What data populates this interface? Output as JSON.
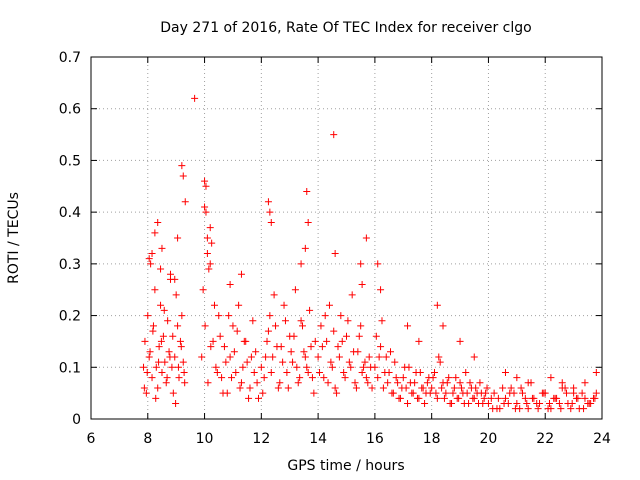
{
  "chart_data": {
    "type": "scatter",
    "title": "Day 271 of 2016, Rate Of TEC Index for receiver clgo",
    "xlabel": "GPS time / hours",
    "ylabel": "ROTI / TECUs",
    "xlim": [
      6,
      24
    ],
    "ylim": [
      0,
      0.7
    ],
    "x_ticks": [
      "6",
      "8",
      "10",
      "12",
      "14",
      "16",
      "18",
      "20",
      "22",
      "24"
    ],
    "y_ticks": [
      "0",
      "0.1",
      "0.2",
      "0.3",
      "0.4",
      "0.5",
      "0.6",
      "0.7"
    ],
    "grid": true,
    "marker": "+",
    "color": "#ff0000",
    "series": [
      {
        "x": [
          7.85,
          7.9,
          7.95,
          8.0,
          8.05,
          8.1,
          8.15,
          8.2,
          8.25,
          8.3,
          8.35,
          8.4,
          8.45,
          8.5,
          8.55,
          8.6,
          8.65,
          8.7,
          8.75,
          8.8,
          8.85,
          8.9,
          8.95,
          9.0,
          9.05,
          9.1,
          9.15,
          9.2,
          9.25,
          9.3,
          7.88,
          7.98,
          8.08,
          8.18,
          8.28,
          8.38,
          8.48,
          8.58,
          8.68,
          8.78,
          8.88,
          8.98,
          9.08,
          9.18,
          9.28,
          8.05,
          8.15,
          8.35,
          8.5,
          8.8,
          9.05,
          9.2,
          9.25,
          9.32,
          8.25,
          8.45,
          8.95,
          9.65,
          9.95,
          10.0,
          10.05,
          10.1,
          10.15,
          10.2,
          10.3,
          10.4,
          10.5,
          10.6,
          10.7,
          10.8,
          10.9,
          11.0,
          11.1,
          11.2,
          11.3,
          11.4,
          11.5,
          11.6,
          11.7,
          11.8,
          11.9,
          9.9,
          10.02,
          10.12,
          10.22,
          10.35,
          10.45,
          10.55,
          10.65,
          10.75,
          10.85,
          10.95,
          11.05,
          11.15,
          11.25,
          11.35,
          11.45,
          11.55,
          11.65,
          11.75,
          11.85,
          10.0,
          10.05,
          10.1,
          10.2,
          10.25,
          10.9,
          11.3,
          12.0,
          12.1,
          12.2,
          12.3,
          12.4,
          12.5,
          12.6,
          12.7,
          12.8,
          12.9,
          13.0,
          13.1,
          13.2,
          13.3,
          13.4,
          13.5,
          13.6,
          13.7,
          13.8,
          13.9,
          12.05,
          12.15,
          12.25,
          12.35,
          12.45,
          12.55,
          12.65,
          12.75,
          12.85,
          12.95,
          13.05,
          13.15,
          13.25,
          13.35,
          13.45,
          13.55,
          13.65,
          13.75,
          13.85,
          12.25,
          12.3,
          12.35,
          13.4,
          13.55,
          13.6,
          13.65,
          14.0,
          14.1,
          14.2,
          14.3,
          14.4,
          14.5,
          14.6,
          14.7,
          14.8,
          14.9,
          15.0,
          15.1,
          15.2,
          15.3,
          15.4,
          15.5,
          15.6,
          15.7,
          15.8,
          15.9,
          14.05,
          14.15,
          14.25,
          14.35,
          14.45,
          14.55,
          14.65,
          14.75,
          14.85,
          14.95,
          15.05,
          15.15,
          15.25,
          15.35,
          15.45,
          15.55,
          15.65,
          15.75,
          15.85,
          14.55,
          14.6,
          15.5,
          15.55,
          15.7,
          16.0,
          16.1,
          16.2,
          16.3,
          16.4,
          16.5,
          16.6,
          16.7,
          16.8,
          16.9,
          17.0,
          17.1,
          17.2,
          17.3,
          17.4,
          17.5,
          17.6,
          17.7,
          17.8,
          17.9,
          16.05,
          16.15,
          16.25,
          16.35,
          16.45,
          16.55,
          16.65,
          16.75,
          16.85,
          16.95,
          17.05,
          17.15,
          17.25,
          17.35,
          17.45,
          17.55,
          17.65,
          17.75,
          17.85,
          17.95,
          16.1,
          16.2,
          17.15,
          17.55,
          18.0,
          18.1,
          18.2,
          18.3,
          18.4,
          18.5,
          18.6,
          18.7,
          18.8,
          18.9,
          19.0,
          19.1,
          19.2,
          19.3,
          19.4,
          19.5,
          19.6,
          19.7,
          19.8,
          19.9,
          18.05,
          18.15,
          18.25,
          18.35,
          18.45,
          18.55,
          18.65,
          18.75,
          18.85,
          18.95,
          19.05,
          19.15,
          19.25,
          19.35,
          19.45,
          19.55,
          19.65,
          19.75,
          19.85,
          19.95,
          18.2,
          18.4,
          19.0,
          19.5,
          20.0,
          20.2,
          20.4,
          20.6,
          20.8,
          21.0,
          21.2,
          21.4,
          21.6,
          21.8,
          22.0,
          22.2,
          22.4,
          22.6,
          22.8,
          23.0,
          23.2,
          23.4,
          23.6,
          23.8,
          20.1,
          20.3,
          20.5,
          20.7,
          20.9,
          21.1,
          21.3,
          21.5,
          21.7,
          21.9,
          22.1,
          22.3,
          22.5,
          22.7,
          22.9,
          23.1,
          23.3,
          23.5,
          23.7,
          20.15,
          20.35,
          20.55,
          20.75,
          20.95,
          21.15,
          21.35,
          21.55,
          21.75,
          21.95,
          22.15,
          22.35,
          22.55,
          22.75,
          22.95,
          23.15,
          23.35,
          23.55,
          23.75,
          20.6,
          21.0,
          21.4,
          22.2,
          22.6,
          23.0,
          23.4,
          23.8
        ],
        "y": [
          0.1,
          0.15,
          0.05,
          0.2,
          0.12,
          0.3,
          0.08,
          0.18,
          0.25,
          0.1,
          0.06,
          0.14,
          0.22,
          0.09,
          0.16,
          0.11,
          0.07,
          0.19,
          0.13,
          0.27,
          0.1,
          0.05,
          0.12,
          0.24,
          0.18,
          0.08,
          0.15,
          0.2,
          0.11,
          0.07,
          0.06,
          0.09,
          0.13,
          0.17,
          0.04,
          0.11,
          0.15,
          0.21,
          0.08,
          0.12,
          0.16,
          0.03,
          0.1,
          0.14,
          0.09,
          0.31,
          0.32,
          0.38,
          0.33,
          0.28,
          0.35,
          0.49,
          0.47,
          0.42,
          0.36,
          0.29,
          0.27,
          0.62,
          0.25,
          0.46,
          0.45,
          0.32,
          0.29,
          0.37,
          0.15,
          0.1,
          0.2,
          0.08,
          0.14,
          0.05,
          0.12,
          0.18,
          0.09,
          0.22,
          0.07,
          0.15,
          0.11,
          0.06,
          0.19,
          0.13,
          0.04,
          0.12,
          0.18,
          0.07,
          0.14,
          0.22,
          0.09,
          0.16,
          0.05,
          0.11,
          0.2,
          0.08,
          0.13,
          0.17,
          0.06,
          0.1,
          0.15,
          0.04,
          0.12,
          0.09,
          0.07,
          0.41,
          0.4,
          0.35,
          0.3,
          0.34,
          0.26,
          0.28,
          0.1,
          0.08,
          0.15,
          0.2,
          0.12,
          0.18,
          0.06,
          0.14,
          0.22,
          0.09,
          0.16,
          0.11,
          0.25,
          0.07,
          0.19,
          0.13,
          0.1,
          0.21,
          0.08,
          0.15,
          0.05,
          0.12,
          0.17,
          0.09,
          0.24,
          0.14,
          0.07,
          0.11,
          0.19,
          0.06,
          0.13,
          0.16,
          0.1,
          0.08,
          0.18,
          0.12,
          0.09,
          0.14,
          0.05,
          0.42,
          0.4,
          0.38,
          0.3,
          0.33,
          0.44,
          0.38,
          0.12,
          0.18,
          0.08,
          0.15,
          0.22,
          0.1,
          0.06,
          0.14,
          0.2,
          0.09,
          0.16,
          0.11,
          0.24,
          0.07,
          0.13,
          0.18,
          0.1,
          0.08,
          0.12,
          0.06,
          0.09,
          0.14,
          0.2,
          0.07,
          0.11,
          0.17,
          0.05,
          0.12,
          0.15,
          0.08,
          0.19,
          0.1,
          0.13,
          0.06,
          0.16,
          0.09,
          0.11,
          0.07,
          0.1,
          0.55,
          0.32,
          0.3,
          0.26,
          0.35,
          0.1,
          0.08,
          0.14,
          0.06,
          0.12,
          0.09,
          0.05,
          0.11,
          0.07,
          0.04,
          0.08,
          0.06,
          0.1,
          0.05,
          0.07,
          0.04,
          0.09,
          0.06,
          0.05,
          0.08,
          0.16,
          0.12,
          0.19,
          0.09,
          0.07,
          0.13,
          0.05,
          0.08,
          0.04,
          0.06,
          0.1,
          0.03,
          0.07,
          0.05,
          0.09,
          0.04,
          0.06,
          0.03,
          0.07,
          0.05,
          0.3,
          0.25,
          0.18,
          0.15,
          0.06,
          0.09,
          0.04,
          0.11,
          0.07,
          0.05,
          0.08,
          0.03,
          0.06,
          0.04,
          0.07,
          0.05,
          0.09,
          0.03,
          0.06,
          0.04,
          0.05,
          0.07,
          0.03,
          0.05,
          0.08,
          0.05,
          0.12,
          0.06,
          0.04,
          0.07,
          0.03,
          0.05,
          0.08,
          0.04,
          0.06,
          0.03,
          0.05,
          0.07,
          0.04,
          0.06,
          0.03,
          0.05,
          0.04,
          0.06,
          0.22,
          0.18,
          0.15,
          0.12,
          0.03,
          0.05,
          0.02,
          0.04,
          0.06,
          0.03,
          0.05,
          0.02,
          0.04,
          0.03,
          0.05,
          0.02,
          0.04,
          0.06,
          0.03,
          0.05,
          0.02,
          0.04,
          0.03,
          0.05,
          0.04,
          0.02,
          0.06,
          0.03,
          0.05,
          0.02,
          0.04,
          0.07,
          0.03,
          0.05,
          0.02,
          0.04,
          0.03,
          0.06,
          0.02,
          0.04,
          0.05,
          0.03,
          0.04,
          0.02,
          0.04,
          0.03,
          0.05,
          0.02,
          0.06,
          0.03,
          0.04,
          0.02,
          0.05,
          0.03,
          0.04,
          0.02,
          0.05,
          0.03,
          0.04,
          0.02,
          0.03,
          0.04,
          0.09,
          0.08,
          0.07,
          0.08,
          0.07,
          0.06,
          0.07,
          0.09
        ]
      }
    ]
  }
}
